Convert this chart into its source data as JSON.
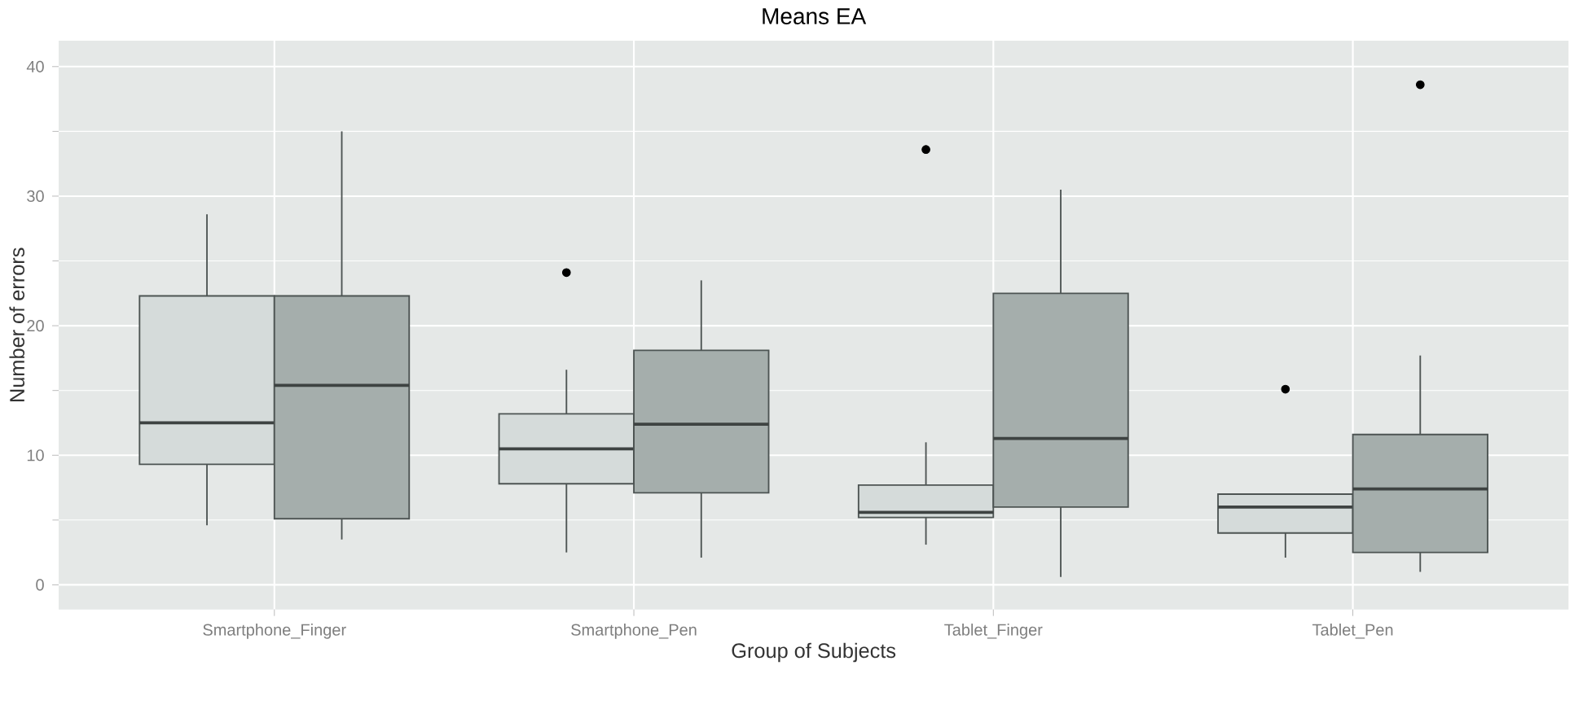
{
  "chart_data": {
    "type": "box",
    "title": "Means EA",
    "xlabel": "Group of Subjects",
    "ylabel": "Number of errors",
    "categories": [
      "Smartphone_Finger",
      "Smartphone_Pen",
      "Tablet_Finger",
      "Tablet_Pen"
    ],
    "series": [
      {
        "color": "#d5dbda",
        "boxes": [
          {
            "low": 4.6,
            "q1": 9.3,
            "median": 12.5,
            "q3": 22.3,
            "high": 28.6
          },
          {
            "low": 2.5,
            "q1": 7.8,
            "median": 10.5,
            "q3": 13.2,
            "high": 16.6,
            "outliers": [
              24.1
            ]
          },
          {
            "low": 3.1,
            "q1": 5.2,
            "median": 5.6,
            "q3": 7.7,
            "high": 11.0,
            "outliers": [
              33.6
            ]
          },
          {
            "low": 2.1,
            "q1": 4.0,
            "median": 6.0,
            "q3": 7.0,
            "high": 7.0,
            "outliers": [
              15.1
            ]
          }
        ]
      },
      {
        "color": "#a5aeac",
        "boxes": [
          {
            "low": 3.5,
            "q1": 5.1,
            "median": 15.4,
            "q3": 22.3,
            "high": 35.0
          },
          {
            "low": 2.1,
            "q1": 7.1,
            "median": 12.4,
            "q3": 18.1,
            "high": 23.5
          },
          {
            "low": 0.6,
            "q1": 6.0,
            "median": 11.3,
            "q3": 22.5,
            "high": 30.5
          },
          {
            "low": 1.0,
            "q1": 2.5,
            "median": 7.4,
            "q3": 11.6,
            "high": 17.7,
            "outliers": [
              38.6
            ]
          }
        ]
      }
    ],
    "ylim": [
      -1.9,
      42
    ],
    "yticks": [
      0,
      10,
      20,
      30,
      40
    ],
    "grid": true
  }
}
